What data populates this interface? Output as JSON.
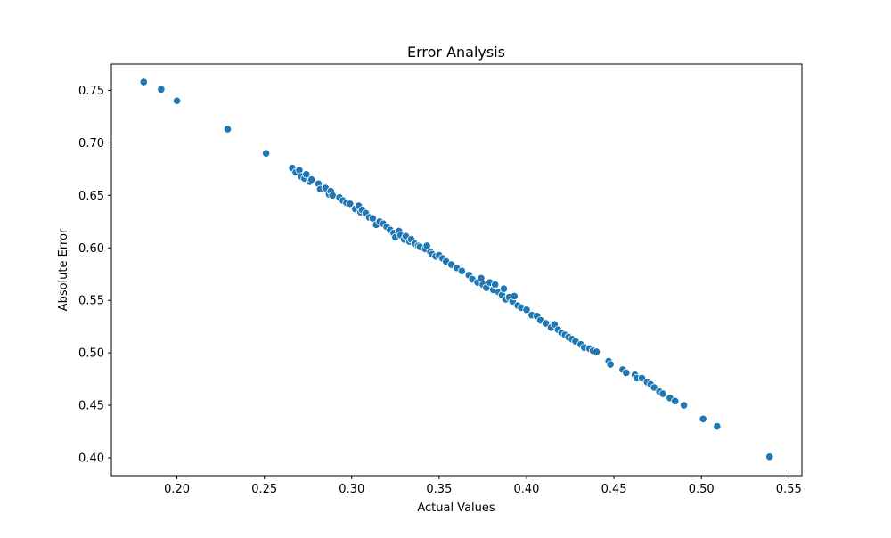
{
  "chart_data": {
    "type": "scatter",
    "title": "Error Analysis",
    "xlabel": "Actual Values",
    "ylabel": "Absolute Error",
    "xlim": [
      0.1625,
      0.5575
    ],
    "ylim": [
      0.383,
      0.775
    ],
    "xticks": [
      0.2,
      0.25,
      0.3,
      0.35,
      0.4,
      0.45,
      0.5,
      0.55
    ],
    "xtick_labels": [
      "0.20",
      "0.25",
      "0.30",
      "0.35",
      "0.40",
      "0.45",
      "0.50",
      "0.55"
    ],
    "yticks": [
      0.4,
      0.45,
      0.5,
      0.55,
      0.6,
      0.65,
      0.7,
      0.75
    ],
    "ytick_labels": [
      "0.40",
      "0.45",
      "0.50",
      "0.55",
      "0.60",
      "0.65",
      "0.70",
      "0.75"
    ],
    "grid": false,
    "legend": "none",
    "marker_color": "#1f77b4",
    "marker_edge_color": "#ffffff",
    "series": [
      {
        "x": [
          0.181,
          0.191,
          0.2,
          0.229,
          0.251,
          0.266,
          0.268,
          0.27,
          0.271,
          0.273,
          0.274,
          0.276,
          0.277,
          0.281,
          0.282,
          0.285,
          0.287,
          0.288,
          0.289,
          0.293,
          0.295,
          0.297,
          0.299,
          0.302,
          0.304,
          0.305,
          0.306,
          0.308,
          0.31,
          0.312,
          0.314,
          0.316,
          0.318,
          0.32,
          0.322,
          0.324,
          0.325,
          0.327,
          0.328,
          0.33,
          0.331,
          0.333,
          0.334,
          0.336,
          0.338,
          0.339,
          0.342,
          0.343,
          0.345,
          0.346,
          0.348,
          0.35,
          0.352,
          0.354,
          0.357,
          0.36,
          0.363,
          0.367,
          0.369,
          0.372,
          0.374,
          0.375,
          0.377,
          0.379,
          0.381,
          0.382,
          0.384,
          0.386,
          0.387,
          0.388,
          0.39,
          0.392,
          0.393,
          0.395,
          0.397,
          0.4,
          0.403,
          0.406,
          0.408,
          0.411,
          0.414,
          0.416,
          0.418,
          0.42,
          0.422,
          0.424,
          0.426,
          0.428,
          0.431,
          0.433,
          0.436,
          0.438,
          0.44,
          0.447,
          0.448,
          0.455,
          0.457,
          0.462,
          0.463,
          0.466,
          0.469,
          0.471,
          0.473,
          0.476,
          0.478,
          0.482,
          0.485,
          0.49,
          0.501,
          0.509,
          0.539
        ],
        "y": [
          0.758,
          0.751,
          0.74,
          0.713,
          0.69,
          0.676,
          0.672,
          0.674,
          0.668,
          0.666,
          0.67,
          0.663,
          0.665,
          0.661,
          0.656,
          0.657,
          0.651,
          0.654,
          0.65,
          0.648,
          0.645,
          0.643,
          0.642,
          0.637,
          0.64,
          0.634,
          0.636,
          0.633,
          0.629,
          0.628,
          0.622,
          0.625,
          0.623,
          0.62,
          0.617,
          0.614,
          0.61,
          0.616,
          0.612,
          0.608,
          0.611,
          0.606,
          0.608,
          0.604,
          0.602,
          0.601,
          0.599,
          0.602,
          0.596,
          0.594,
          0.592,
          0.593,
          0.59,
          0.587,
          0.584,
          0.581,
          0.578,
          0.574,
          0.57,
          0.567,
          0.571,
          0.565,
          0.562,
          0.567,
          0.56,
          0.565,
          0.558,
          0.555,
          0.561,
          0.551,
          0.553,
          0.549,
          0.554,
          0.545,
          0.543,
          0.541,
          0.536,
          0.535,
          0.531,
          0.528,
          0.524,
          0.527,
          0.522,
          0.519,
          0.517,
          0.515,
          0.513,
          0.511,
          0.508,
          0.505,
          0.504,
          0.502,
          0.501,
          0.492,
          0.489,
          0.484,
          0.481,
          0.479,
          0.476,
          0.476,
          0.472,
          0.47,
          0.467,
          0.463,
          0.461,
          0.457,
          0.454,
          0.45,
          0.437,
          0.43,
          0.401
        ]
      }
    ]
  }
}
